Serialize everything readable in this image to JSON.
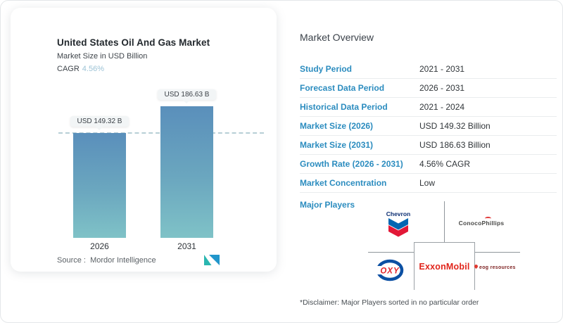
{
  "window": {
    "background": "#ffffff",
    "border_color": "#e4e7e9"
  },
  "chart_card": {
    "title": "United States Oil And Gas Market",
    "subtitle": "Market Size in USD Billion",
    "cagr_label": "CAGR",
    "cagr_value": "4.56%",
    "source_label": "Source :",
    "source_value": "Mordor Intelligence"
  },
  "chart_data": {
    "type": "bar",
    "title": "United States Oil And Gas Market",
    "ylabel": "Market Size in USD Billion",
    "unit": "USD Billion",
    "categories": [
      "2026",
      "2031"
    ],
    "values": [
      149.32,
      186.63
    ],
    "value_labels": [
      "USD 149.32 B",
      "USD 186.63 B"
    ],
    "cagr_percent": 4.56,
    "reference_line_at": 149.32,
    "ylim": [
      0,
      200
    ],
    "grid": false,
    "legend": "none",
    "bar_color_top": "#5a8fbb",
    "bar_color_bottom": "#7fc2c7"
  },
  "overview": {
    "heading": "Market Overview",
    "rows": [
      {
        "label": "Study Period",
        "value": "2021 - 2031"
      },
      {
        "label": "Forecast Data Period",
        "value": "2026 - 2031"
      },
      {
        "label": "Historical Data Period",
        "value": "2021 - 2024"
      },
      {
        "label": "Market Size (2026)",
        "value": "USD 149.32 Billion"
      },
      {
        "label": "Market Size (2031)",
        "value": "USD 186.63 Billion"
      },
      {
        "label": "Growth Rate (2026 - 2031)",
        "value": "4.56% CAGR"
      },
      {
        "label": "Market Concentration",
        "value": "Low"
      }
    ],
    "major_players_label": "Major Players",
    "players": [
      {
        "name": "Chevron"
      },
      {
        "name": "ConocoPhillips"
      },
      {
        "name": "OXY"
      },
      {
        "name": "ExxonMobil"
      },
      {
        "name": "eog resources"
      }
    ],
    "disclaimer": "*Disclaimer: Major Players sorted in no particular order"
  },
  "colors": {
    "accent_blue": "#2b8cbf",
    "cagr_value_blue": "#9cc3d6",
    "exxon_red": "#e1251b",
    "chevron_blue": "#0066b2",
    "chevron_red": "#e21837",
    "oxy_blue": "#0c50a3",
    "oxy_red": "#e0242b",
    "org_line_gray": "#8f969b"
  }
}
